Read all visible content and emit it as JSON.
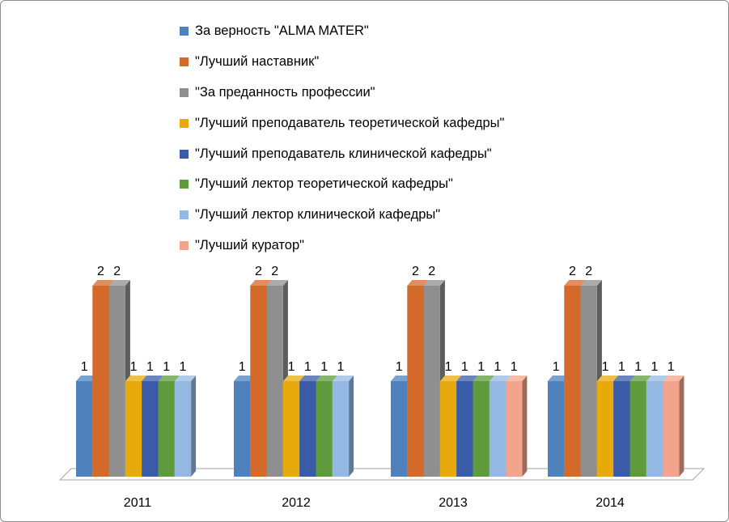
{
  "chart_data": {
    "type": "bar",
    "categories": [
      "2011",
      "2012",
      "2013",
      "2014"
    ],
    "series": [
      {
        "name": "За верность \"ALMA MATER\"",
        "color": "#4f81bd",
        "values": [
          1,
          1,
          1,
          1
        ]
      },
      {
        "name": "\"Лучший наставник\"",
        "color": "#d46a2a",
        "values": [
          2,
          2,
          2,
          2
        ]
      },
      {
        "name": "\"За преданность профессии\"",
        "color": "#8f8f8f",
        "values": [
          2,
          2,
          2,
          2
        ]
      },
      {
        "name": "\"Лучший преподаватель теоретической кафедры\"",
        "color": "#e8a90c",
        "values": [
          1,
          1,
          1,
          1
        ]
      },
      {
        "name": "\"Лучший преподаватель клинической кафедры\"",
        "color": "#3a5ca8",
        "values": [
          1,
          1,
          1,
          1
        ]
      },
      {
        "name": "\"Лучший лектор теоретической кафедры\"",
        "color": "#5f9a3c",
        "values": [
          1,
          1,
          1,
          1
        ]
      },
      {
        "name": "\"Лучший лектор клинической кафедры\"",
        "color": "#95b8e3",
        "values": [
          1,
          1,
          1,
          1
        ]
      },
      {
        "name": "\"Лучший куратор\"",
        "color": "#f2a58c",
        "values": [
          null,
          null,
          1,
          1
        ]
      }
    ],
    "data_labels": true,
    "three_d": true,
    "legend_position": "top",
    "grid": false,
    "ylim": [
      0,
      2
    ]
  }
}
